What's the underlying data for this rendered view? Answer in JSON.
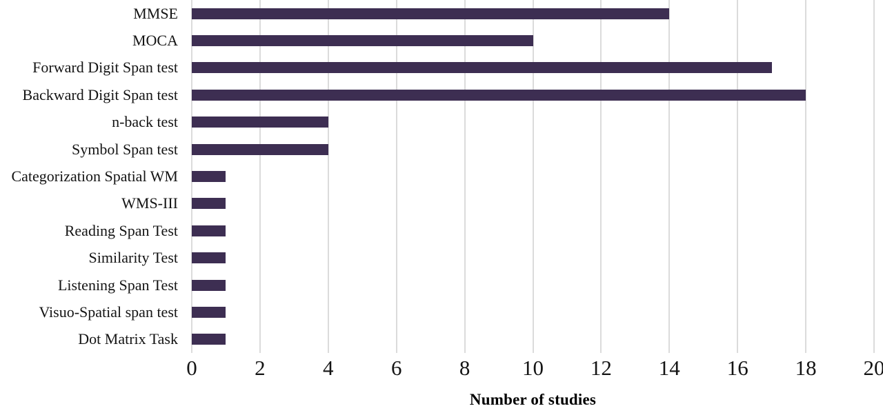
{
  "chart_data": {
    "type": "bar",
    "orientation": "horizontal",
    "title": "",
    "xlabel": "Number of studies",
    "ylabel": "",
    "xlim": [
      0,
      20
    ],
    "xticks": [
      0,
      2,
      4,
      6,
      8,
      10,
      12,
      14,
      16,
      18,
      20
    ],
    "grid": true,
    "gridline_color": "#dbdbdb",
    "bar_color": "#3d2e52",
    "text_color": "#141414",
    "categories": [
      "MMSE",
      "MOCA",
      "Forward Digit Span test",
      "Backward Digit Span test",
      "n-back test",
      "Symbol Span test",
      "Categorization Spatial WM",
      "WMS-III",
      "Reading Span Test",
      "Similarity Test",
      "Listening Span Test",
      "Visuo-Spatial span test",
      "Dot Matrix Task"
    ],
    "values": [
      14,
      10,
      17,
      18,
      4,
      4,
      1,
      1,
      1,
      1,
      1,
      1,
      1
    ]
  }
}
